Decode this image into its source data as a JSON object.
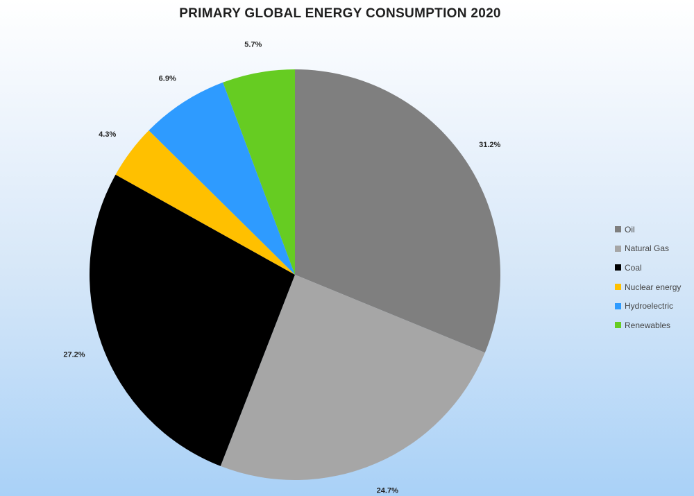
{
  "chart_data": {
    "type": "pie",
    "title": "PRIMARY GLOBAL ENERGY CONSUMPTION 2020",
    "start_angle_deg": 0,
    "direction": "clockwise",
    "legend_position": "right",
    "slices": [
      {
        "name": "Oil",
        "value": 31.2,
        "label": "31.2%",
        "color": "#7f7f7f"
      },
      {
        "name": "Natural Gas",
        "value": 24.7,
        "label": "24.7%",
        "color": "#a6a6a6"
      },
      {
        "name": "Coal",
        "value": 27.2,
        "label": "27.2%",
        "color": "#000000"
      },
      {
        "name": "Nuclear energy",
        "value": 4.3,
        "label": "4.3%",
        "color": "#ffc000"
      },
      {
        "name": "Hydroelectric",
        "value": 6.9,
        "label": "6.9%",
        "color": "#2e9bff"
      },
      {
        "name": "Renewables",
        "value": 5.7,
        "label": "5.7%",
        "color": "#66cc22"
      }
    ]
  }
}
